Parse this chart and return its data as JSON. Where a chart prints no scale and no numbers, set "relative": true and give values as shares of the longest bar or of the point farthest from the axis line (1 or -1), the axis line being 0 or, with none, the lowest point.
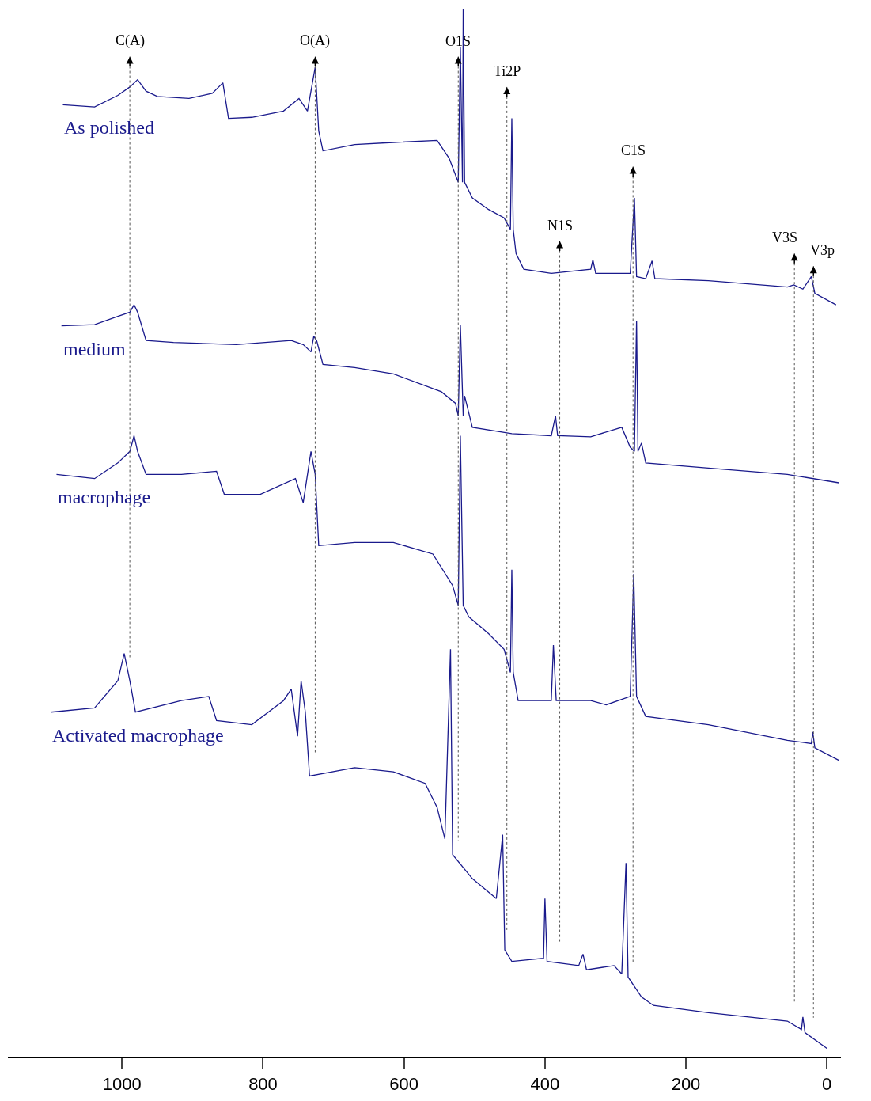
{
  "chart_data": {
    "type": "line",
    "relative": true,
    "legend": false,
    "grid": false,
    "tick_labels": "x",
    "xlim": [
      1162,
      -20
    ],
    "xticks": [
      1000,
      800,
      600,
      400,
      200,
      0
    ],
    "series": [
      {
        "name": "As polished",
        "color": "#1a1a8c",
        "x": [
          1084,
          1039,
          1006,
          989,
          978,
          966,
          950,
          905,
          872,
          857,
          849,
          816,
          771,
          749,
          737,
          726,
          721,
          715,
          670,
          615,
          553,
          536,
          523,
          520,
          517,
          516,
          514,
          503,
          480,
          458,
          449,
          447,
          445,
          441,
          430,
          391,
          335,
          332,
          328,
          279,
          273,
          270,
          257,
          248,
          244,
          168,
          56,
          47,
          34,
          22,
          17,
          -13
        ],
        "values": [
          0.909,
          0.907,
          0.918,
          0.926,
          0.933,
          0.922,
          0.917,
          0.915,
          0.92,
          0.93,
          0.896,
          0.897,
          0.903,
          0.915,
          0.903,
          0.945,
          0.884,
          0.865,
          0.871,
          0.873,
          0.875,
          0.858,
          0.835,
          0.964,
          0.835,
          1.0,
          0.835,
          0.82,
          0.809,
          0.801,
          0.79,
          0.896,
          0.79,
          0.767,
          0.752,
          0.748,
          0.752,
          0.761,
          0.748,
          0.748,
          0.82,
          0.745,
          0.743,
          0.76,
          0.743,
          0.741,
          0.735,
          0.737,
          0.733,
          0.745,
          0.729,
          0.718
        ]
      },
      {
        "name": "medium",
        "color": "#1a1a8c",
        "x": [
          1086,
          1039,
          1006,
          989,
          983,
          978,
          966,
          927,
          838,
          760,
          743,
          732,
          728,
          724,
          715,
          670,
          615,
          547,
          527,
          523,
          520,
          516,
          514,
          503,
          447,
          391,
          385,
          382,
          335,
          291,
          279,
          273,
          270,
          268,
          263,
          257,
          168,
          56,
          -17
        ],
        "values": [
          0.698,
          0.699,
          0.707,
          0.711,
          0.718,
          0.711,
          0.684,
          0.682,
          0.68,
          0.684,
          0.68,
          0.673,
          0.688,
          0.684,
          0.661,
          0.658,
          0.652,
          0.635,
          0.624,
          0.612,
          0.699,
          0.612,
          0.631,
          0.601,
          0.595,
          0.593,
          0.612,
          0.593,
          0.592,
          0.601,
          0.582,
          0.578,
          0.703,
          0.578,
          0.586,
          0.567,
          0.562,
          0.556,
          0.548
        ]
      },
      {
        "name": "macrophage",
        "color": "#1a1a8c",
        "x": [
          1093,
          1039,
          1006,
          989,
          983,
          978,
          966,
          916,
          866,
          855,
          804,
          754,
          743,
          732,
          726,
          721,
          670,
          615,
          559,
          531,
          523,
          520,
          516,
          508,
          480,
          458,
          449,
          447,
          445,
          438,
          391,
          388,
          384,
          335,
          313,
          279,
          274,
          270,
          257,
          168,
          56,
          22,
          20,
          17,
          -17
        ],
        "values": [
          0.556,
          0.552,
          0.567,
          0.578,
          0.593,
          0.578,
          0.556,
          0.556,
          0.559,
          0.537,
          0.537,
          0.552,
          0.529,
          0.578,
          0.556,
          0.488,
          0.491,
          0.491,
          0.48,
          0.45,
          0.431,
          0.593,
          0.431,
          0.42,
          0.404,
          0.389,
          0.367,
          0.465,
          0.367,
          0.34,
          0.34,
          0.393,
          0.34,
          0.34,
          0.336,
          0.344,
          0.461,
          0.344,
          0.325,
          0.317,
          0.302,
          0.299,
          0.31,
          0.295,
          0.283
        ]
      },
      {
        "name": "Activated macrophage",
        "color": "#1a1a8c",
        "x": [
          1101,
          1039,
          1006,
          997,
          989,
          981,
          916,
          877,
          866,
          816,
          771,
          760,
          751,
          746,
          740,
          734,
          670,
          615,
          570,
          553,
          542,
          534,
          531,
          503,
          469,
          460,
          457,
          447,
          402,
          400,
          397,
          352,
          346,
          341,
          302,
          291,
          285,
          282,
          263,
          246,
          168,
          56,
          36,
          34,
          31,
          0
        ],
        "values": [
          0.329,
          0.333,
          0.359,
          0.385,
          0.359,
          0.329,
          0.34,
          0.344,
          0.321,
          0.317,
          0.34,
          0.351,
          0.306,
          0.359,
          0.329,
          0.268,
          0.276,
          0.272,
          0.261,
          0.238,
          0.208,
          0.389,
          0.193,
          0.17,
          0.151,
          0.212,
          0.102,
          0.091,
          0.094,
          0.151,
          0.091,
          0.087,
          0.098,
          0.083,
          0.087,
          0.079,
          0.185,
          0.076,
          0.057,
          0.049,
          0.042,
          0.034,
          0.026,
          0.038,
          0.023,
          0.008
        ]
      }
    ],
    "ref_lines": [
      {
        "axis": "x",
        "value": 989,
        "label": "C(A)"
      },
      {
        "axis": "x",
        "value": 726,
        "label": "O(A)"
      },
      {
        "axis": "x",
        "value": 523,
        "label": "O1S"
      },
      {
        "axis": "x",
        "value": 454,
        "label": "Ti2P"
      },
      {
        "axis": "x",
        "value": 379,
        "label": "N1S"
      },
      {
        "axis": "x",
        "value": 275,
        "label": "C1S"
      },
      {
        "axis": "x",
        "value": 46,
        "label": "V3S"
      },
      {
        "axis": "x",
        "value": 19,
        "label": "V3p"
      }
    ]
  }
}
